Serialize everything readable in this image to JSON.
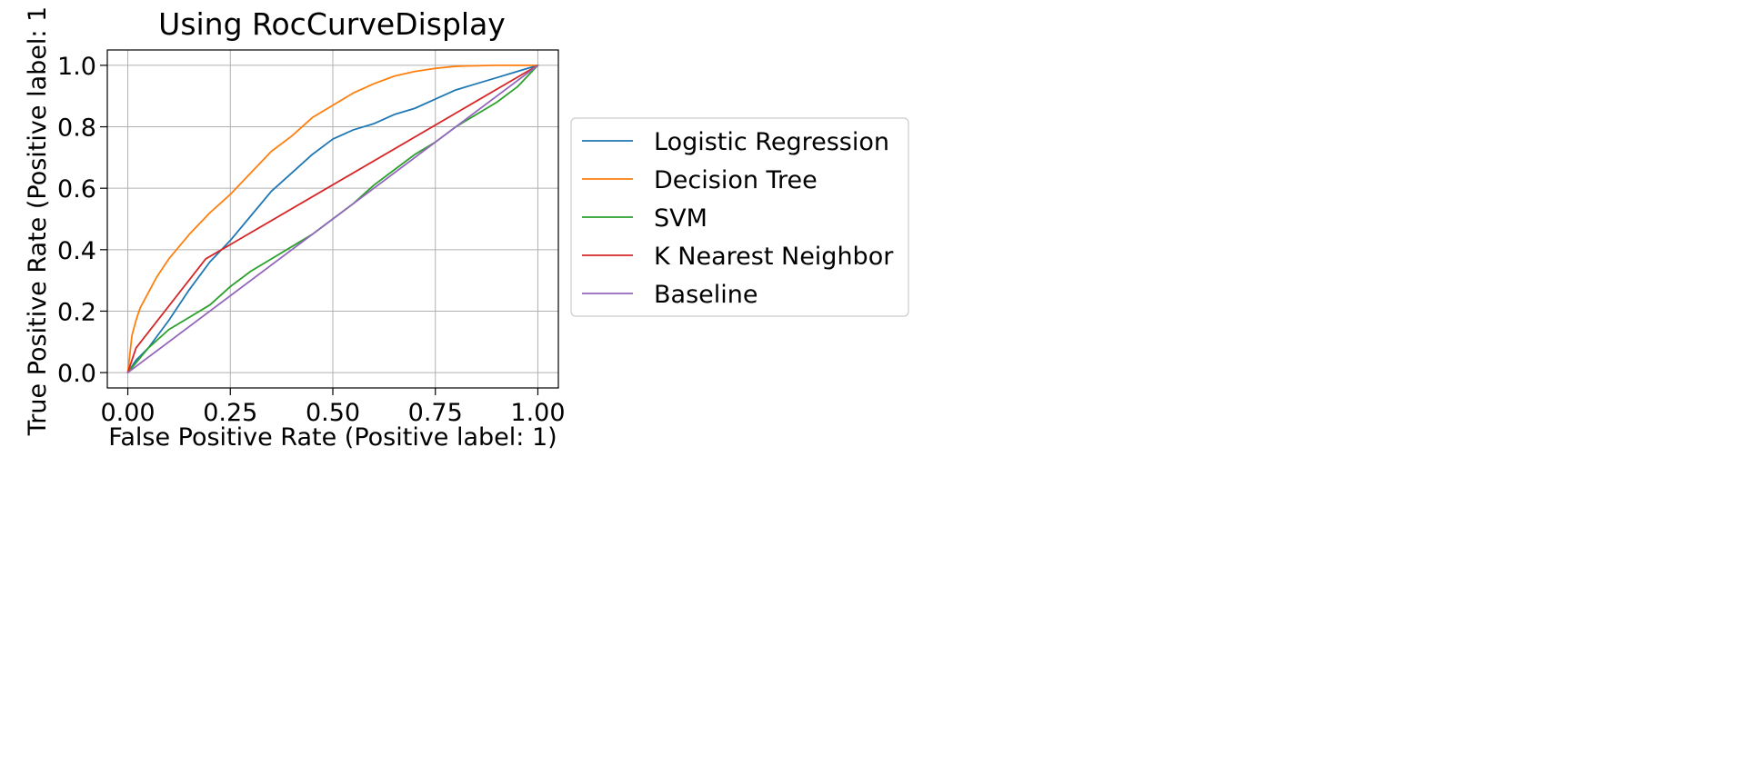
{
  "chart_data": {
    "type": "line",
    "title": "Using RocCurveDisplay",
    "xlabel": "False Positive Rate (Positive label: 1)",
    "ylabel": "True Positive Rate (Positive label: 1",
    "xlim": [
      -0.05,
      1.05
    ],
    "ylim": [
      -0.05,
      1.05
    ],
    "xticks": [
      0.0,
      0.25,
      0.5,
      0.75,
      1.0
    ],
    "xtick_labels": [
      "0.00",
      "0.25",
      "0.50",
      "0.75",
      "1.00"
    ],
    "yticks": [
      0.0,
      0.2,
      0.4,
      0.6,
      0.8,
      1.0
    ],
    "ytick_labels": [
      "0.0",
      "0.2",
      "0.4",
      "0.6",
      "0.8",
      "1.0"
    ],
    "grid": true,
    "legend_placement": "outside-right",
    "series": [
      {
        "name": "Logistic Regression",
        "color": "#1f77b4",
        "points": [
          [
            0,
            0
          ],
          [
            0.02,
            0.04
          ],
          [
            0.05,
            0.08
          ],
          [
            0.1,
            0.17
          ],
          [
            0.15,
            0.27
          ],
          [
            0.2,
            0.36
          ],
          [
            0.25,
            0.43
          ],
          [
            0.3,
            0.51
          ],
          [
            0.35,
            0.59
          ],
          [
            0.4,
            0.65
          ],
          [
            0.45,
            0.71
          ],
          [
            0.5,
            0.76
          ],
          [
            0.55,
            0.79
          ],
          [
            0.6,
            0.81
          ],
          [
            0.65,
            0.84
          ],
          [
            0.7,
            0.86
          ],
          [
            0.75,
            0.89
          ],
          [
            0.8,
            0.92
          ],
          [
            0.85,
            0.94
          ],
          [
            0.9,
            0.96
          ],
          [
            0.95,
            0.98
          ],
          [
            1.0,
            1.0
          ]
        ]
      },
      {
        "name": "Decision Tree",
        "color": "#ff7f0e",
        "points": [
          [
            0,
            0
          ],
          [
            0.005,
            0.06
          ],
          [
            0.01,
            0.12
          ],
          [
            0.02,
            0.17
          ],
          [
            0.03,
            0.21
          ],
          [
            0.05,
            0.26
          ],
          [
            0.07,
            0.31
          ],
          [
            0.1,
            0.37
          ],
          [
            0.15,
            0.45
          ],
          [
            0.2,
            0.52
          ],
          [
            0.25,
            0.58
          ],
          [
            0.3,
            0.65
          ],
          [
            0.35,
            0.72
          ],
          [
            0.4,
            0.77
          ],
          [
            0.45,
            0.83
          ],
          [
            0.5,
            0.87
          ],
          [
            0.55,
            0.91
          ],
          [
            0.6,
            0.94
          ],
          [
            0.65,
            0.965
          ],
          [
            0.7,
            0.98
          ],
          [
            0.75,
            0.99
          ],
          [
            0.8,
            0.997
          ],
          [
            0.9,
            1.0
          ],
          [
            1.0,
            1.0
          ]
        ]
      },
      {
        "name": "SVM",
        "color": "#2ca02c",
        "points": [
          [
            0,
            0
          ],
          [
            0.05,
            0.08
          ],
          [
            0.1,
            0.14
          ],
          [
            0.15,
            0.18
          ],
          [
            0.2,
            0.22
          ],
          [
            0.25,
            0.28
          ],
          [
            0.3,
            0.33
          ],
          [
            0.35,
            0.37
          ],
          [
            0.4,
            0.41
          ],
          [
            0.45,
            0.45
          ],
          [
            0.5,
            0.5
          ],
          [
            0.55,
            0.55
          ],
          [
            0.6,
            0.61
          ],
          [
            0.65,
            0.66
          ],
          [
            0.7,
            0.71
          ],
          [
            0.75,
            0.75
          ],
          [
            0.8,
            0.8
          ],
          [
            0.85,
            0.84
          ],
          [
            0.9,
            0.88
          ],
          [
            0.95,
            0.93
          ],
          [
            1.0,
            1.0
          ]
        ]
      },
      {
        "name": "K Nearest Neighbor",
        "color": "#d62728",
        "points": [
          [
            0,
            0
          ],
          [
            0.02,
            0.08
          ],
          [
            0.19,
            0.37
          ],
          [
            1.0,
            1.0
          ]
        ]
      },
      {
        "name": "Baseline",
        "color": "#9467bd",
        "points": [
          [
            0,
            0
          ],
          [
            1.0,
            1.0
          ]
        ]
      }
    ]
  }
}
